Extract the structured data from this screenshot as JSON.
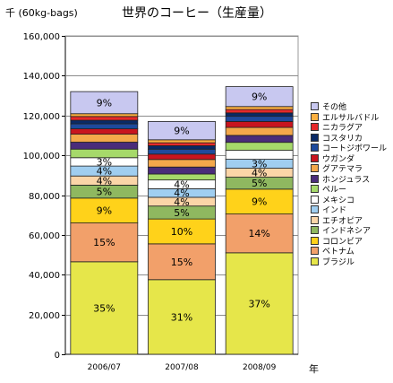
{
  "chart_data": {
    "type": "bar",
    "stacked": true,
    "title": "世界のコーヒー（生産量）",
    "ylabel": "千 (60kg-bags)",
    "xlabel": "年",
    "ylim": [
      0,
      160000
    ],
    "yticks": [
      0,
      20000,
      40000,
      60000,
      80000,
      100000,
      120000,
      140000,
      160000
    ],
    "ytick_labels": [
      "0",
      "20,000",
      "40,000",
      "60,000",
      "80,000",
      "100,000",
      "120,000",
      "140,000",
      "160,000"
    ],
    "grid": true,
    "legend_position": "right",
    "categories": [
      "2006/07",
      "2007/08",
      "2008/09"
    ],
    "series": [
      {
        "name": "ブラジル",
        "color": "#e6e64a",
        "values": [
          46500,
          37500,
          51000
        ],
        "labels": [
          "35%",
          "31%",
          "37%"
        ]
      },
      {
        "name": "ベトナム",
        "color": "#f2a06a",
        "values": [
          19500,
          18000,
          19500
        ],
        "labels": [
          "15%",
          "15%",
          "14%"
        ]
      },
      {
        "name": "コロンビア",
        "color": "#ffd21a",
        "values": [
          12500,
          12500,
          12500
        ],
        "labels": [
          "9%",
          "10%",
          "9%"
        ]
      },
      {
        "name": "インドネシア",
        "color": "#8fb860",
        "values": [
          6500,
          6500,
          6000
        ],
        "labels": [
          "5%",
          "5%",
          "5%"
        ]
      },
      {
        "name": "エチオピア",
        "color": "#fbd5a8",
        "values": [
          4600,
          4400,
          4500
        ],
        "labels": [
          "4%",
          "4%",
          "4%"
        ]
      },
      {
        "name": "インド",
        "color": "#a0cef0",
        "values": [
          5000,
          4300,
          4500
        ],
        "labels": [
          "4%",
          "4%",
          "3%"
        ]
      },
      {
        "name": "メキシコ",
        "color": "#ffffff",
        "values": [
          4200,
          4400,
          4500
        ],
        "labels": [
          "3%",
          "4%",
          ""
        ]
      },
      {
        "name": "ペルー",
        "color": "#a6d96a",
        "values": [
          4300,
          3000,
          4000
        ],
        "labels": [
          "",
          "",
          ""
        ]
      },
      {
        "name": "ホンジュラス",
        "color": "#4a2c7a",
        "values": [
          3500,
          3500,
          3500
        ],
        "labels": [
          "",
          "",
          ""
        ]
      },
      {
        "name": "グアテマラ",
        "color": "#f4a84a",
        "values": [
          4000,
          3800,
          4000
        ],
        "labels": [
          "",
          "",
          ""
        ]
      },
      {
        "name": "ウガンダ",
        "color": "#c8141e",
        "values": [
          2700,
          2700,
          3000
        ],
        "labels": [
          "",
          "",
          ""
        ]
      },
      {
        "name": "コートジボワール",
        "color": "#1e4a9c",
        "values": [
          2500,
          2500,
          2600
        ],
        "labels": [
          "",
          "",
          ""
        ]
      },
      {
        "name": "コスタリカ",
        "color": "#0a2a66",
        "values": [
          1800,
          1700,
          1700
        ],
        "labels": [
          "",
          "",
          ""
        ]
      },
      {
        "name": "ニカラグア",
        "color": "#e62a2a",
        "values": [
          1900,
          1500,
          1700
        ],
        "labels": [
          "",
          "",
          ""
        ]
      },
      {
        "name": "エルサルバドル",
        "color": "#fcb040",
        "values": [
          1400,
          1500,
          1500
        ],
        "labels": [
          "",
          "",
          ""
        ]
      },
      {
        "name": "その他",
        "color": "#c8c8f0",
        "values": [
          11100,
          9200,
          10000
        ],
        "labels": [
          "9%",
          "9%",
          "9%"
        ]
      }
    ]
  }
}
